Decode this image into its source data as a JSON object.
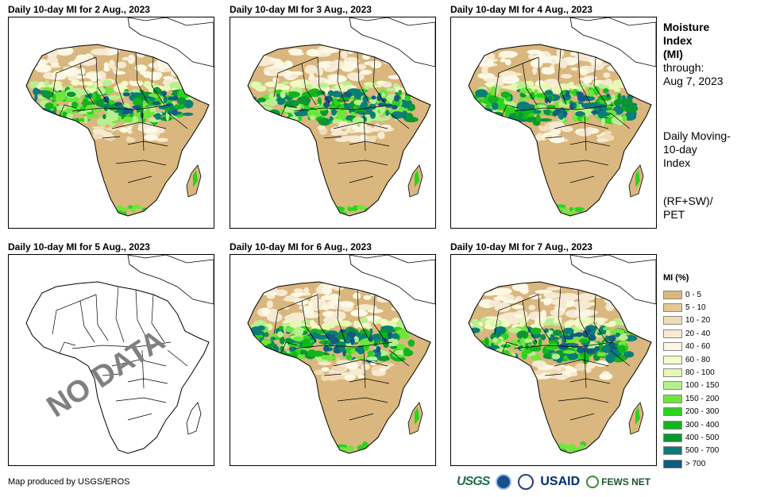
{
  "panels": [
    {
      "title": "Daily 10-day MI for 2 Aug., 2023",
      "has_data": true
    },
    {
      "title": "Daily 10-day MI for 3 Aug., 2023",
      "has_data": true
    },
    {
      "title": "Daily 10-day MI for 4 Aug., 2023",
      "has_data": true
    },
    {
      "title": "Daily 10-day MI for 5 Aug., 2023",
      "has_data": false,
      "overlay": "NO DATA"
    },
    {
      "title": "Daily 10-day MI for 6 Aug., 2023",
      "has_data": true
    },
    {
      "title": "Daily 10-day MI for 7 Aug., 2023",
      "has_data": true
    }
  ],
  "side": {
    "title_lines": [
      "Moisture",
      "Index",
      "(MI)"
    ],
    "through_label": "through:",
    "through_date": "Aug 7, 2023",
    "desc_lines": [
      "Daily Moving-",
      "10-day",
      "Index"
    ],
    "formula_lines": [
      "(RF+SW)/",
      "PET"
    ]
  },
  "legend": {
    "title": "MI (%)",
    "items": [
      {
        "label": "0 - 5",
        "color": "#d9b77e"
      },
      {
        "label": "5 - 10",
        "color": "#e5c796"
      },
      {
        "label": "10 - 20",
        "color": "#f0dcb4"
      },
      {
        "label": "20 - 40",
        "color": "#f7ead2"
      },
      {
        "label": "40 - 60",
        "color": "#fcf8e6"
      },
      {
        "label": "60 - 80",
        "color": "#f5fbc8"
      },
      {
        "label": "80 - 100",
        "color": "#e6f8b4"
      },
      {
        "label": "100 - 150",
        "color": "#b8f090"
      },
      {
        "label": "150 - 200",
        "color": "#6ee63c"
      },
      {
        "label": "200 - 300",
        "color": "#2cd21e"
      },
      {
        "label": "300 - 400",
        "color": "#12b41e"
      },
      {
        "label": "400 - 500",
        "color": "#0a9632"
      },
      {
        "label": "500 - 700",
        "color": "#0a7d78"
      },
      {
        "label": "> 700",
        "color": "#145a82"
      }
    ]
  },
  "credit": "Map produced by USGS/EROS",
  "logos": {
    "usgs": "USGS",
    "usaid": "USAID",
    "fews": "FEWS NET"
  }
}
